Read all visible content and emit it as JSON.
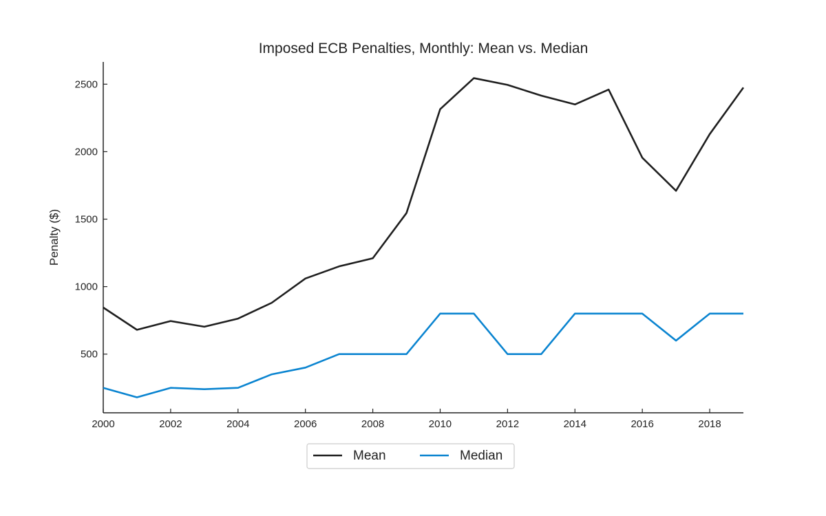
{
  "chart_data": {
    "type": "line",
    "title": "Imposed ECB Penalties, Monthly: Mean vs. Median",
    "xlabel": "",
    "ylabel": "Penalty ($)",
    "x": [
      2000,
      2001,
      2002,
      2003,
      2004,
      2005,
      2006,
      2007,
      2008,
      2009,
      2010,
      2011,
      2012,
      2013,
      2014,
      2015,
      2016,
      2017,
      2018,
      2019
    ],
    "xticks": [
      2000,
      2002,
      2004,
      2006,
      2008,
      2010,
      2012,
      2014,
      2016,
      2018
    ],
    "yticks": [
      500,
      1000,
      1500,
      2000,
      2500
    ],
    "xlim": [
      2000,
      2019
    ],
    "ylim": [
      65,
      2665
    ],
    "grid": false,
    "legend_position": "bottom-center",
    "series": [
      {
        "name": "Mean",
        "color": "#1f1f1f",
        "values": [
          845,
          680,
          745,
          703,
          763,
          880,
          1060,
          1150,
          1210,
          1545,
          2315,
          2545,
          2495,
          2415,
          2350,
          2460,
          1955,
          1710,
          2130,
          2475
        ]
      },
      {
        "name": "Median",
        "color": "#0a84d0",
        "values": [
          250,
          180,
          250,
          240,
          250,
          350,
          400,
          500,
          500,
          500,
          800,
          800,
          500,
          500,
          800,
          800,
          800,
          600,
          800,
          800
        ]
      }
    ]
  }
}
